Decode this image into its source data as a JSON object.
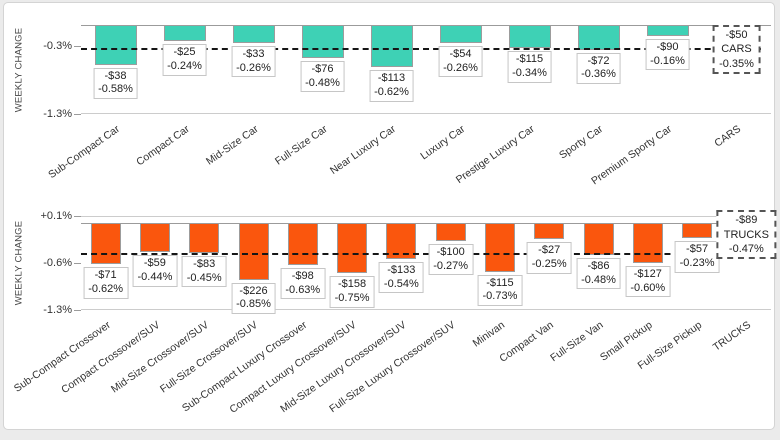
{
  "page": {
    "background": "#ebebeb",
    "card_background": "#ffffff"
  },
  "chart_data": [
    {
      "type": "bar",
      "group": "CARS",
      "title": "",
      "xlabel": "",
      "ylabel": "WEEKLY CHANGE",
      "bar_color": "#3ed1b5",
      "grid": false,
      "legend": false,
      "ylim": [
        0,
        -1.3
      ],
      "y_ticks": [
        {
          "label": "-0.3%",
          "value": -0.3
        },
        {
          "label": "-1.3%",
          "value": -1.3
        }
      ],
      "average_line": -0.35,
      "categories": [
        "Sub-Compact Car",
        "Compact Car",
        "Mid-Size Car",
        "Full-Size Car",
        "Near Luxury Car",
        "Luxury Car",
        "Prestige Luxury Car",
        "Sporty Car",
        "Premium Sporty Car"
      ],
      "series": [
        {
          "name": "Weekly dollar change",
          "values": [
            -38,
            -25,
            -33,
            -76,
            -113,
            -54,
            -115,
            -72,
            -90
          ]
        },
        {
          "name": "Weekly percent change",
          "values": [
            -0.58,
            -0.24,
            -0.26,
            -0.48,
            -0.62,
            -0.26,
            -0.34,
            -0.36,
            -0.16
          ]
        }
      ],
      "bar_labels": [
        [
          "-$38",
          "-0.58%"
        ],
        [
          "-$25",
          "-0.24%"
        ],
        [
          "-$33",
          "-0.26%"
        ],
        [
          "-$76",
          "-0.48%"
        ],
        [
          "-$113",
          "-0.62%"
        ],
        [
          "-$54",
          "-0.26%"
        ],
        [
          "-$115",
          "-0.34%"
        ],
        [
          "-$72",
          "-0.36%"
        ],
        [
          "-$90",
          "-0.16%"
        ]
      ],
      "aggregate": {
        "dollar": "-$50",
        "label": "CARS",
        "percent": "-0.35%",
        "percent_value": -0.35
      }
    },
    {
      "type": "bar",
      "group": "TRUCKS",
      "title": "",
      "xlabel": "",
      "ylabel": "WEEKLY CHANGE",
      "bar_color": "#fa560d",
      "grid": false,
      "legend": false,
      "ylim": [
        0.1,
        -1.3
      ],
      "y_ticks": [
        {
          "label": "+0.1%",
          "value": 0.1
        },
        {
          "label": "-0.6%",
          "value": -0.6
        },
        {
          "label": "-1.3%",
          "value": -1.3
        }
      ],
      "average_line": -0.47,
      "categories": [
        "Sub-Compact Crossover",
        "Compact Crossover/SUV",
        "Mid-Size Crossover/SUV",
        "Full-Size Crossover/SUV",
        "Sub-Compact Luxury Crossover",
        "Compact Luxury Crossover/SUV",
        "Mid-Size Luxury Crossover/SUV",
        "Full-Size Luxury Crossover/SUV",
        "Minivan",
        "Compact Van",
        "Full-Size Van",
        "Small Pickup",
        "Full-Size Pickup"
      ],
      "series": [
        {
          "name": "Weekly dollar change",
          "values": [
            -71,
            -59,
            -83,
            -226,
            -98,
            -158,
            -133,
            -100,
            -115,
            -27,
            -86,
            -127,
            -57
          ]
        },
        {
          "name": "Weekly percent change",
          "values": [
            -0.62,
            -0.44,
            -0.45,
            -0.85,
            -0.63,
            -0.75,
            -0.54,
            -0.27,
            -0.73,
            -0.25,
            -0.48,
            -0.6,
            -0.23
          ]
        }
      ],
      "bar_labels": [
        [
          "-$71",
          "-0.62%"
        ],
        [
          "-$59",
          "-0.44%"
        ],
        [
          "-$83",
          "-0.45%"
        ],
        [
          "-$226",
          "-0.85%"
        ],
        [
          "-$98",
          "-0.63%"
        ],
        [
          "-$158",
          "-0.75%"
        ],
        [
          "-$133",
          "-0.54%"
        ],
        [
          "-$100",
          "-0.27%"
        ],
        [
          "-$115",
          "-0.73%"
        ],
        [
          "-$27",
          "-0.25%"
        ],
        [
          "-$86",
          "-0.48%"
        ],
        [
          "-$127",
          "-0.60%"
        ],
        [
          "-$57",
          "-0.23%"
        ]
      ],
      "aggregate": {
        "dollar": "-$89",
        "label": "TRUCKS",
        "percent": "-0.47%",
        "percent_value": -0.47
      }
    }
  ]
}
